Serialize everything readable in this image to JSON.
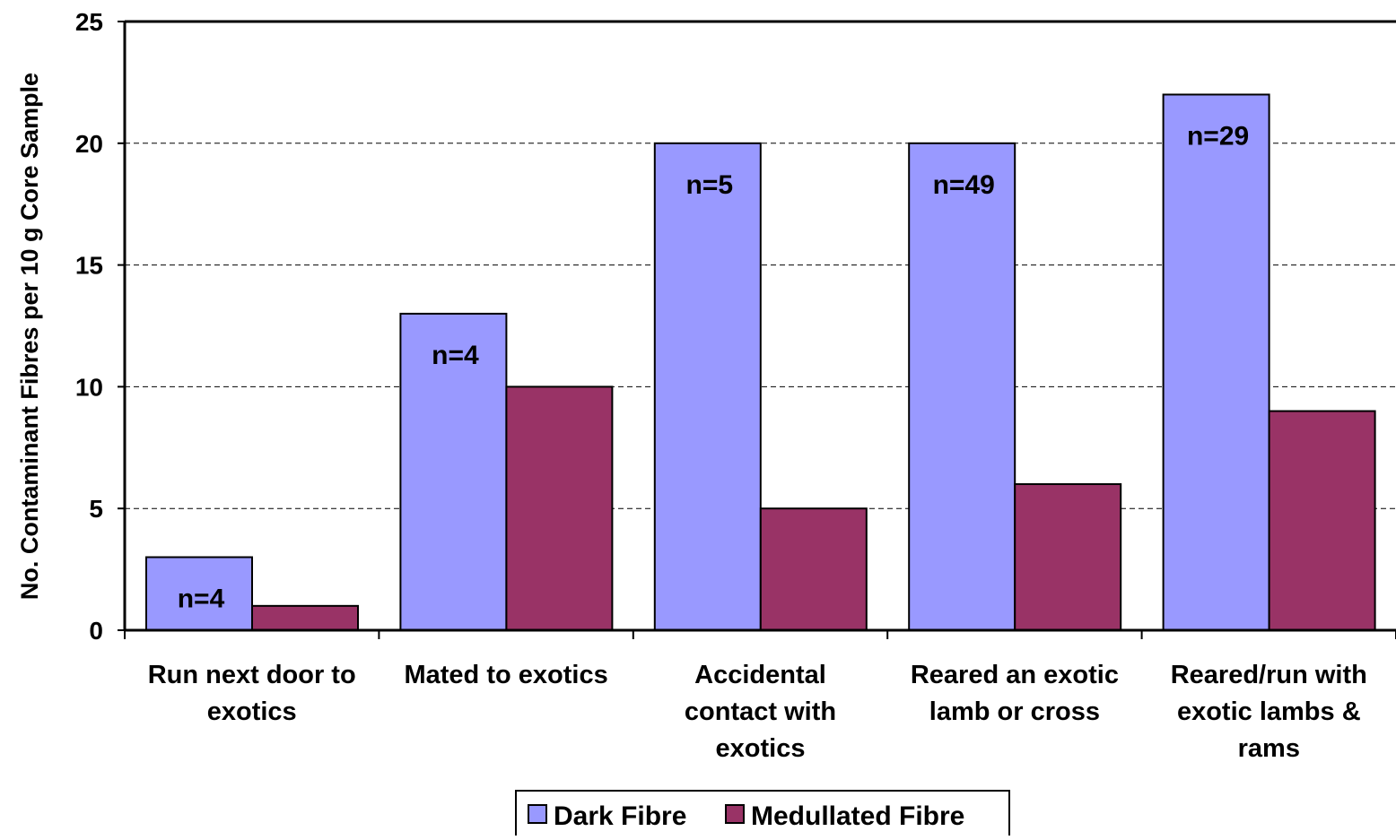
{
  "chart_data": {
    "type": "bar",
    "title": "",
    "xlabel": "",
    "ylabel": "No. Contaminant Fibres per 10 g Core Sample",
    "ylim": [
      0,
      25
    ],
    "yticks": [
      "0",
      "5",
      "10",
      "15",
      "20",
      "25"
    ],
    "grid": true,
    "legend_position": "bottom",
    "categories": [
      [
        "Run next door to",
        "exotics"
      ],
      [
        "Mated to exotics"
      ],
      [
        "Accidental",
        "contact with",
        "exotics"
      ],
      [
        "Reared an exotic",
        "lamb or cross"
      ],
      [
        "Reared/run with",
        "exotic lambs &",
        "rams"
      ]
    ],
    "series": [
      {
        "name": "Dark Fibre",
        "color": "#9999ff",
        "values": [
          3,
          13,
          20,
          20,
          22
        ]
      },
      {
        "name": "Medullated Fibre",
        "color": "#993366",
        "values": [
          1,
          10,
          5,
          6,
          9
        ]
      }
    ],
    "annotations": [
      "n=4",
      "n=4",
      "n=5",
      "n=49",
      "n=29"
    ]
  }
}
